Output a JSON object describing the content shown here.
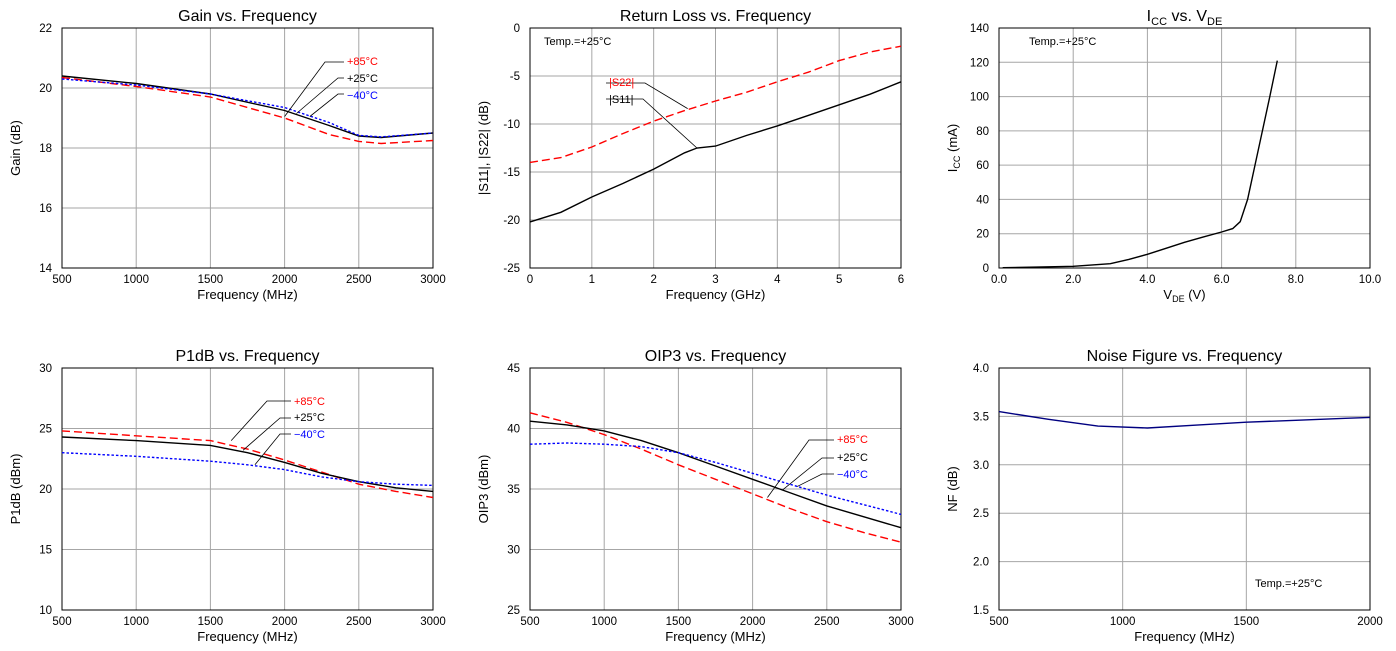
{
  "chart_data": [
    {
      "type": "line",
      "title": "Gain vs. Frequency",
      "xlabel": "Frequency (MHz)",
      "ylabel": "Gain (dB)",
      "xlim": [
        500,
        3000
      ],
      "ylim": [
        14,
        22
      ],
      "xticks": [
        500,
        1000,
        1500,
        2000,
        2500,
        3000
      ],
      "yticks": [
        14,
        16,
        18,
        20,
        22
      ],
      "grid": true,
      "series": [
        {
          "name": "+85°C",
          "color": "#ff0000",
          "style": "dashed",
          "points": [
            [
              500,
              20.35
            ],
            [
              1000,
              20.05
            ],
            [
              1500,
              19.7
            ],
            [
              2000,
              19.0
            ],
            [
              2300,
              18.45
            ],
            [
              2500,
              18.22
            ],
            [
              2650,
              18.15
            ],
            [
              3000,
              18.25
            ]
          ]
        },
        {
          "name": "+25°C",
          "color": "#000000",
          "style": "solid",
          "points": [
            [
              500,
              20.4
            ],
            [
              1000,
              20.15
            ],
            [
              1500,
              19.8
            ],
            [
              2000,
              19.25
            ],
            [
              2300,
              18.75
            ],
            [
              2500,
              18.4
            ],
            [
              2650,
              18.35
            ],
            [
              3000,
              18.5
            ]
          ]
        },
        {
          "name": "−40°C",
          "color": "#0000ff",
          "style": "dotted",
          "points": [
            [
              500,
              20.3
            ],
            [
              1000,
              20.1
            ],
            [
              1500,
              19.8
            ],
            [
              2000,
              19.35
            ],
            [
              2300,
              18.85
            ],
            [
              2500,
              18.42
            ],
            [
              2650,
              18.37
            ],
            [
              3000,
              18.5
            ]
          ]
        }
      ],
      "annotations": []
    },
    {
      "type": "line",
      "title": "Return Loss vs. Frequency",
      "xlabel": "Frequency (GHz)",
      "ylabel": "|S11|, |S22| (dB)",
      "xlim": [
        0,
        6
      ],
      "ylim": [
        -25,
        0
      ],
      "xticks": [
        0,
        1,
        2,
        3,
        4,
        5,
        6
      ],
      "yticks": [
        -25,
        -20,
        -15,
        -10,
        -5,
        0
      ],
      "grid": true,
      "series": [
        {
          "name": "|S22|",
          "color": "#ff0000",
          "style": "dashed",
          "points": [
            [
              0,
              -14.0
            ],
            [
              0.5,
              -13.5
            ],
            [
              1,
              -12.4
            ],
            [
              1.5,
              -11.0
            ],
            [
              2,
              -9.7
            ],
            [
              2.5,
              -8.6
            ],
            [
              3,
              -7.6
            ],
            [
              3.5,
              -6.7
            ],
            [
              4,
              -5.6
            ],
            [
              4.5,
              -4.6
            ],
            [
              5,
              -3.4
            ],
            [
              5.5,
              -2.5
            ],
            [
              6,
              -1.9
            ]
          ]
        },
        {
          "name": "|S11|",
          "color": "#000000",
          "style": "solid",
          "points": [
            [
              0,
              -20.2
            ],
            [
              0.5,
              -19.2
            ],
            [
              1,
              -17.6
            ],
            [
              1.5,
              -16.2
            ],
            [
              2,
              -14.7
            ],
            [
              2.5,
              -13.0
            ],
            [
              2.7,
              -12.5
            ],
            [
              3,
              -12.3
            ],
            [
              3.5,
              -11.2
            ],
            [
              4,
              -10.2
            ],
            [
              4.5,
              -9.1
            ],
            [
              5,
              -8.0
            ],
            [
              5.5,
              -6.9
            ],
            [
              6,
              -5.6
            ]
          ]
        }
      ],
      "annotations": [
        "Temp.=+25°C"
      ]
    },
    {
      "type": "line",
      "title": "I",
      "title_sub": "CC",
      "title_mid": " vs. V",
      "title_sub2": "DE",
      "xlabel": "V",
      "xlabel_sub": "DE",
      "xlabel_tail": " (V)",
      "ylabel": "I",
      "ylabel_sub": "CC",
      "ylabel_tail": " (mA)",
      "xlim": [
        0,
        10
      ],
      "ylim": [
        0,
        140
      ],
      "xticks": [
        "0.0",
        "2.0",
        "4.0",
        "6.0",
        "8.0",
        "10.0"
      ],
      "yticks": [
        0,
        20,
        40,
        60,
        80,
        100,
        120,
        140
      ],
      "grid": true,
      "series": [
        {
          "name": "",
          "color": "#000000",
          "style": "solid",
          "points": [
            [
              0.1,
              0.2
            ],
            [
              1,
              0.5
            ],
            [
              2,
              1.0
            ],
            [
              3,
              2.5
            ],
            [
              3.5,
              5
            ],
            [
              4,
              8
            ],
            [
              4.5,
              11.5
            ],
            [
              5,
              15
            ],
            [
              5.5,
              18
            ],
            [
              6,
              21
            ],
            [
              6.3,
              23
            ],
            [
              6.5,
              27
            ],
            [
              6.7,
              40
            ],
            [
              6.9,
              60
            ],
            [
              7.1,
              80
            ],
            [
              7.3,
              100
            ],
            [
              7.5,
              121
            ]
          ]
        }
      ],
      "annotations": [
        "Temp.=+25°C"
      ]
    },
    {
      "type": "line",
      "title": "P1dB vs. Frequency",
      "xlabel": "Frequency (MHz)",
      "ylabel": "P1dB (dBm)",
      "xlim": [
        500,
        3000
      ],
      "ylim": [
        10,
        30
      ],
      "xticks": [
        500,
        1000,
        1500,
        2000,
        2500,
        3000
      ],
      "yticks": [
        10,
        15,
        20,
        25,
        30
      ],
      "grid": true,
      "series": [
        {
          "name": "+85°C",
          "color": "#ff0000",
          "style": "dashed",
          "points": [
            [
              500,
              24.8
            ],
            [
              1000,
              24.4
            ],
            [
              1500,
              24.0
            ],
            [
              1750,
              23.3
            ],
            [
              2000,
              22.4
            ],
            [
              2250,
              21.4
            ],
            [
              2500,
              20.4
            ],
            [
              2750,
              19.8
            ],
            [
              3000,
              19.3
            ]
          ]
        },
        {
          "name": "+25°C",
          "color": "#000000",
          "style": "solid",
          "points": [
            [
              500,
              24.3
            ],
            [
              1000,
              24.0
            ],
            [
              1500,
              23.6
            ],
            [
              1750,
              23.0
            ],
            [
              2000,
              22.2
            ],
            [
              2250,
              21.3
            ],
            [
              2500,
              20.6
            ],
            [
              2750,
              20.1
            ],
            [
              3000,
              19.8
            ]
          ]
        },
        {
          "name": "−40°C",
          "color": "#0000ff",
          "style": "dotted",
          "points": [
            [
              500,
              23.0
            ],
            [
              1000,
              22.7
            ],
            [
              1500,
              22.3
            ],
            [
              1750,
              22.0
            ],
            [
              2000,
              21.6
            ],
            [
              2250,
              21.0
            ],
            [
              2500,
              20.6
            ],
            [
              2750,
              20.4
            ],
            [
              3000,
              20.3
            ]
          ]
        }
      ],
      "annotations": []
    },
    {
      "type": "line",
      "title": "OIP3 vs. Frequency",
      "xlabel": "Frequency (MHz)",
      "ylabel": "OIP3 (dBm)",
      "xlim": [
        500,
        3000
      ],
      "ylim": [
        25,
        45
      ],
      "xticks": [
        500,
        1000,
        1500,
        2000,
        2500,
        3000
      ],
      "yticks": [
        25,
        30,
        35,
        40,
        45
      ],
      "grid": true,
      "series": [
        {
          "name": "+85°C",
          "color": "#ff0000",
          "style": "dashed",
          "points": [
            [
              500,
              41.3
            ],
            [
              750,
              40.5
            ],
            [
              1000,
              39.5
            ],
            [
              1250,
              38.3
            ],
            [
              1500,
              37.0
            ],
            [
              1750,
              35.8
            ],
            [
              2000,
              34.6
            ],
            [
              2250,
              33.4
            ],
            [
              2500,
              32.3
            ],
            [
              2750,
              31.4
            ],
            [
              3000,
              30.6
            ]
          ]
        },
        {
          "name": "+25°C",
          "color": "#000000",
          "style": "solid",
          "points": [
            [
              500,
              40.6
            ],
            [
              750,
              40.3
            ],
            [
              1000,
              39.8
            ],
            [
              1250,
              39.0
            ],
            [
              1500,
              38.0
            ],
            [
              1750,
              36.9
            ],
            [
              2000,
              35.8
            ],
            [
              2250,
              34.7
            ],
            [
              2500,
              33.6
            ],
            [
              2750,
              32.7
            ],
            [
              3000,
              31.8
            ]
          ]
        },
        {
          "name": "−40°C",
          "color": "#0000ff",
          "style": "dotted",
          "points": [
            [
              500,
              38.7
            ],
            [
              750,
              38.8
            ],
            [
              1000,
              38.7
            ],
            [
              1250,
              38.5
            ],
            [
              1500,
              38.0
            ],
            [
              1750,
              37.2
            ],
            [
              2000,
              36.3
            ],
            [
              2250,
              35.4
            ],
            [
              2500,
              34.5
            ],
            [
              2750,
              33.7
            ],
            [
              3000,
              32.9
            ]
          ]
        }
      ],
      "annotations": []
    },
    {
      "type": "line",
      "title": "Noise Figure vs. Frequency",
      "xlabel": "Frequency (MHz)",
      "ylabel": "NF (dB)",
      "xlim": [
        500,
        2000
      ],
      "ylim": [
        1.5,
        4.0
      ],
      "xticks": [
        500,
        1000,
        1500,
        2000
      ],
      "yticks": [
        "1.5",
        "2.0",
        "2.5",
        "3.0",
        "3.5",
        "4.0"
      ],
      "grid": true,
      "series": [
        {
          "name": "",
          "color": "#000080",
          "style": "solid",
          "points": [
            [
              500,
              3.55
            ],
            [
              700,
              3.47
            ],
            [
              900,
              3.4
            ],
            [
              1100,
              3.38
            ],
            [
              1300,
              3.41
            ],
            [
              1500,
              3.44
            ],
            [
              1700,
              3.46
            ],
            [
              1900,
              3.48
            ],
            [
              2000,
              3.49
            ]
          ]
        }
      ],
      "annotations": [
        "Temp.=+25°C"
      ]
    }
  ]
}
